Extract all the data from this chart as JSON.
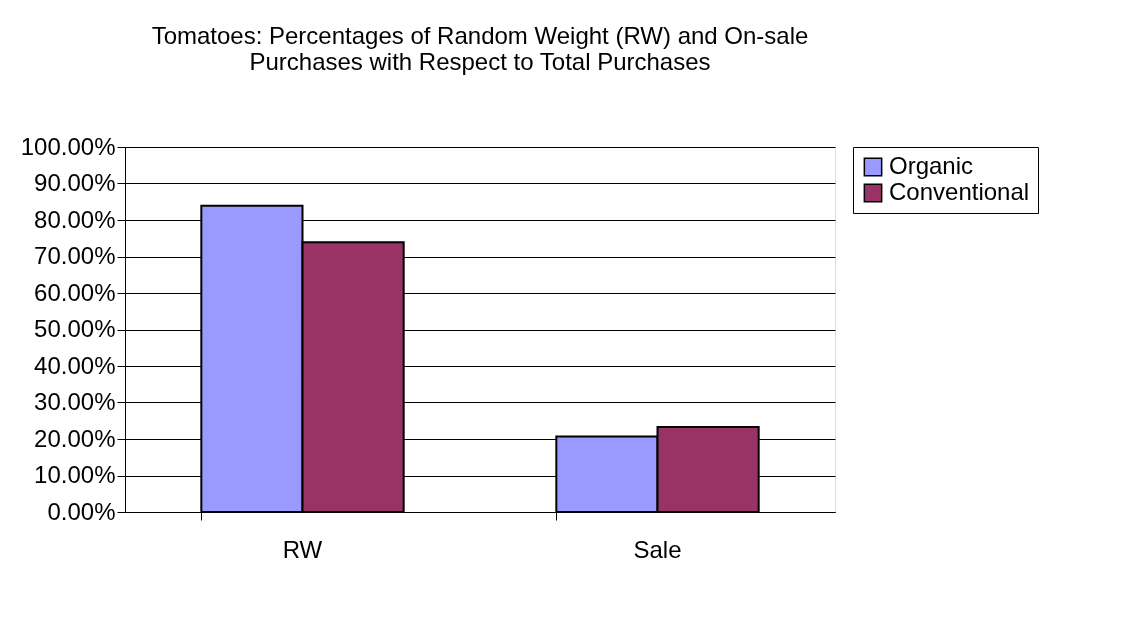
{
  "chart_data": {
    "type": "bar",
    "title": "Tomatoes: Percentages of Random Weight (RW) and On-sale\nPurchases with Respect to Total Purchases",
    "categories": [
      "RW",
      "Sale"
    ],
    "series": [
      {
        "name": "Organic",
        "color": "#9999ff",
        "values": [
          83.9,
          20.7
        ]
      },
      {
        "name": "Conventional",
        "color": "#993366",
        "values": [
          73.9,
          23.3
        ]
      }
    ],
    "ylim": [
      0,
      100
    ],
    "yticks": [
      {
        "value": 0,
        "label": "0.00%"
      },
      {
        "value": 10,
        "label": "10.00%"
      },
      {
        "value": 20,
        "label": "20.00%"
      },
      {
        "value": 30,
        "label": "30.00%"
      },
      {
        "value": 40,
        "label": "40.00%"
      },
      {
        "value": 50,
        "label": "50.00%"
      },
      {
        "value": 60,
        "label": "60.00%"
      },
      {
        "value": 70,
        "label": "70.00%"
      },
      {
        "value": 80,
        "label": "80.00%"
      },
      {
        "value": 90,
        "label": "90.00%"
      },
      {
        "value": 100,
        "label": "100.00%"
      }
    ],
    "grid": "y",
    "legend": "right"
  }
}
